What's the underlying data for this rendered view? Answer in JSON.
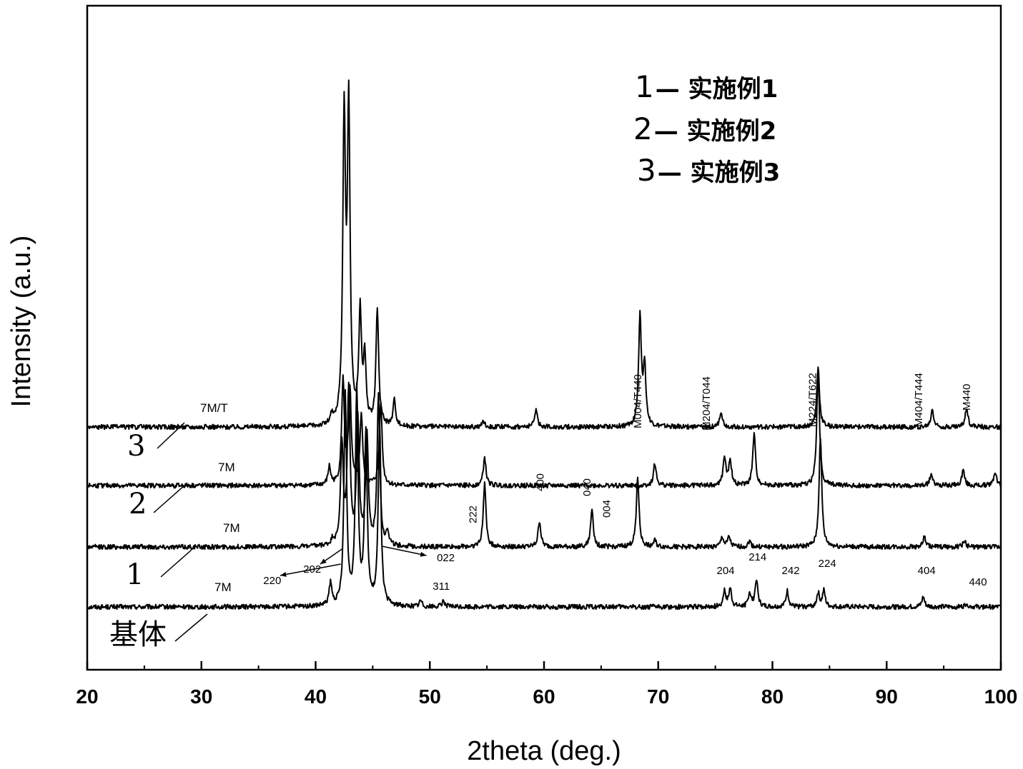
{
  "chart_data": {
    "type": "line",
    "title": "",
    "xlabel": "2theta (deg.)",
    "ylabel": "Intensity (a.u.)",
    "xlim": [
      20,
      100
    ],
    "x_ticks": [
      "20",
      "30",
      "40",
      "50",
      "60",
      "70",
      "80",
      "90",
      "100"
    ],
    "y_ticks_labeled": false,
    "grid": false,
    "legend": {
      "placement": "top-right",
      "entries": [
        {
          "key": "1",
          "sep": "—",
          "text": "实施例1"
        },
        {
          "key": "2",
          "sep": "—",
          "text": "实施例2"
        },
        {
          "key": "3",
          "sep": "—",
          "text": "实施例3"
        }
      ]
    },
    "series": [
      {
        "label": "基体",
        "phase": "7M",
        "baseline": 0.0,
        "noise": 0.012,
        "peaks": [
          [
            41.3,
            0.11
          ],
          [
            42.6,
            1.05
          ],
          [
            43.6,
            1.08
          ],
          [
            44.4,
            0.85
          ],
          [
            45.6,
            0.92
          ],
          [
            49.2,
            0.03
          ],
          [
            51.2,
            0.03
          ],
          [
            75.8,
            0.08
          ],
          [
            76.3,
            0.09
          ],
          [
            78.0,
            0.07
          ],
          [
            78.6,
            0.14
          ],
          [
            81.3,
            0.08
          ],
          [
            84.0,
            0.07
          ],
          [
            84.5,
            0.08
          ],
          [
            93.2,
            0.05
          ],
          [
            97.0,
            0.02
          ]
        ]
      },
      {
        "label": "1",
        "phase": "7M",
        "baseline": 0.3,
        "noise": 0.012,
        "peaks": [
          [
            41.5,
            0.03
          ],
          [
            42.3,
            0.5
          ],
          [
            42.9,
            0.78
          ],
          [
            43.7,
            0.62
          ],
          [
            44.5,
            0.55
          ],
          [
            45.5,
            0.75
          ],
          [
            46.3,
            0.07
          ],
          [
            54.8,
            0.32
          ],
          [
            59.6,
            0.13
          ],
          [
            64.2,
            0.19
          ],
          [
            68.2,
            0.35
          ],
          [
            69.7,
            0.03
          ],
          [
            75.6,
            0.05
          ],
          [
            76.2,
            0.05
          ],
          [
            78.0,
            0.03
          ],
          [
            84.2,
            0.55
          ],
          [
            93.3,
            0.05
          ],
          [
            96.8,
            0.03
          ]
        ]
      },
      {
        "label": "2",
        "phase": "7M",
        "baseline": 0.6,
        "noise": 0.012,
        "peaks": [
          [
            41.2,
            0.09
          ],
          [
            42.4,
            0.52
          ],
          [
            43.0,
            0.48
          ],
          [
            44.0,
            0.35
          ],
          [
            45.7,
            0.42
          ],
          [
            54.8,
            0.14
          ],
          [
            69.7,
            0.11
          ],
          [
            75.8,
            0.14
          ],
          [
            76.3,
            0.13
          ],
          [
            78.4,
            0.26
          ],
          [
            84.0,
            0.58
          ],
          [
            93.9,
            0.06
          ],
          [
            96.7,
            0.08
          ],
          [
            99.5,
            0.07
          ]
        ]
      },
      {
        "label": "3",
        "phase": "7M/T",
        "baseline": 0.9,
        "noise": 0.012,
        "peaks": [
          [
            41.4,
            0.04
          ],
          [
            42.5,
            1.5
          ],
          [
            42.9,
            1.55
          ],
          [
            43.9,
            0.55
          ],
          [
            44.3,
            0.32
          ],
          [
            45.4,
            0.58
          ],
          [
            46.9,
            0.13
          ],
          [
            54.7,
            0.03
          ],
          [
            59.3,
            0.09
          ],
          [
            68.4,
            0.55
          ],
          [
            68.8,
            0.3
          ],
          [
            75.5,
            0.08
          ],
          [
            84.0,
            0.3
          ],
          [
            94.0,
            0.09
          ],
          [
            97.0,
            0.1
          ]
        ]
      }
    ],
    "annotations": {
      "phase_labels_series3": [
        {
          "text": "M004/T440",
          "x": 68.2
        },
        {
          "text": "M204/T044",
          "x": 74.2
        },
        {
          "text": "M224/T622",
          "x": 83.5
        },
        {
          "text": "M404/T444",
          "x": 92.8
        },
        {
          "text": "M440",
          "x": 97.0
        }
      ],
      "peaks_series1": [
        {
          "text": "222",
          "x": 53.7
        },
        {
          "text": "400",
          "x": 59.6
        },
        {
          "text": "040",
          "x": 63.7
        },
        {
          "text": "004",
          "x": 65.4
        }
      ],
      "peaks_base": [
        {
          "text": "220",
          "x": 36.2
        },
        {
          "text": "202",
          "x": 39.7
        },
        {
          "text": "022",
          "x": 51.4
        },
        {
          "text": "311",
          "x": 51.0
        },
        {
          "text": "204",
          "x": 75.9
        },
        {
          "text": "214",
          "x": 78.7
        },
        {
          "text": "242",
          "x": 81.6
        },
        {
          "text": "224",
          "x": 84.8
        },
        {
          "text": "404",
          "x": 93.5
        },
        {
          "text": "440",
          "x": 98.0
        }
      ]
    }
  }
}
